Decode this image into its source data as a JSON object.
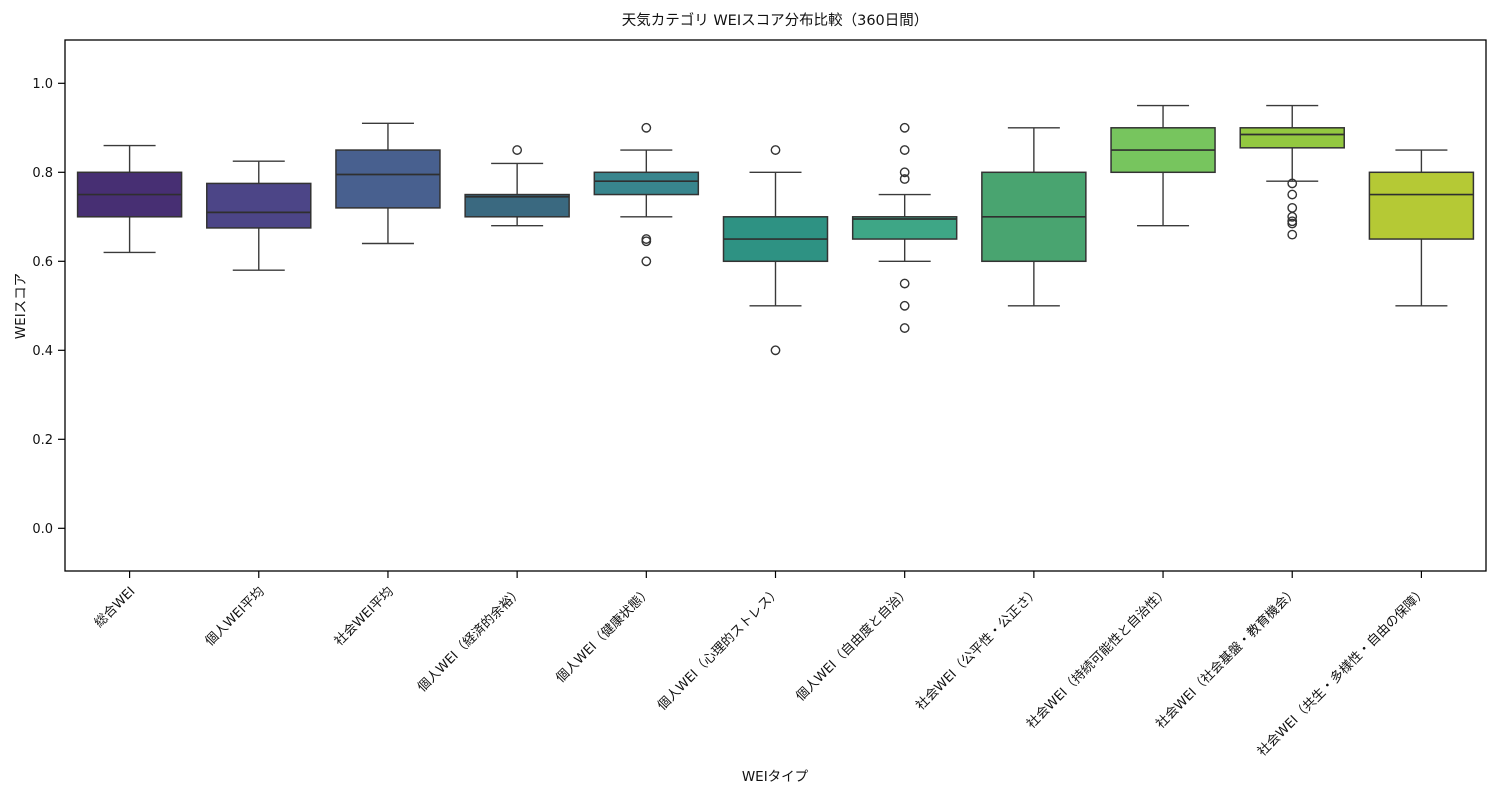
{
  "title": "天気カテゴリ WEIスコア分布比較（360日間）",
  "axes": {
    "x_label": "WEIタイプ",
    "y_label": "WEIスコア",
    "y_ticks": [
      "0.0",
      "0.2",
      "0.4",
      "0.6",
      "0.8",
      "1.0"
    ]
  },
  "colors": {
    "background": "#ffffff",
    "axis_line": "#000000",
    "box_edge": "#333333",
    "median_line": "#2f2f2f",
    "whisker": "#3a3a3a"
  },
  "chart_data": {
    "type": "boxplot",
    "title": "天気カテゴリ WEIスコア分布比較（360日間）",
    "xlabel": "WEIタイプ",
    "ylabel": "WEIスコア",
    "ylim": [
      -0.1,
      1.1
    ],
    "yticks": [
      0.0,
      0.2,
      0.4,
      0.6,
      0.8,
      1.0
    ],
    "grid": false,
    "legend": "none",
    "categories": [
      "総合WEI",
      "個人WEI平均",
      "社会WEI平均",
      "個人WEI（経済的余裕）",
      "個人WEI（健康状態）",
      "個人WEI（心理的ストレス）",
      "個人WEI（自由度と自治）",
      "社会WEI（公平性・公正さ）",
      "社会WEI（持続可能性と自治性）",
      "社会WEI（社会基盤・教育機会）",
      "社会WEI（共生・多様性・自由の保障）"
    ],
    "series": [
      {
        "label": "総合WEI",
        "whisker_low": 0.62,
        "q1": 0.7,
        "median": 0.75,
        "q3": 0.8,
        "whisker_high": 0.86,
        "outliers": [],
        "color": "#472f73"
      },
      {
        "label": "個人WEI平均",
        "whisker_low": 0.58,
        "q1": 0.675,
        "median": 0.71,
        "q3": 0.775,
        "whisker_high": 0.825,
        "outliers": [],
        "color": "#4c4587"
      },
      {
        "label": "社会WEI平均",
        "whisker_low": 0.64,
        "q1": 0.72,
        "median": 0.795,
        "q3": 0.85,
        "whisker_high": 0.91,
        "outliers": [],
        "color": "#48608f"
      },
      {
        "label": "個人WEI（経済的余裕）",
        "whisker_low": 0.68,
        "q1": 0.7,
        "median": 0.745,
        "q3": 0.75,
        "whisker_high": 0.82,
        "outliers": [
          0.85
        ],
        "color": "#3a6980"
      },
      {
        "label": "個人WEI（健康状態）",
        "whisker_low": 0.7,
        "q1": 0.75,
        "median": 0.78,
        "q3": 0.8,
        "whisker_high": 0.85,
        "outliers": [
          0.9,
          0.65,
          0.645,
          0.6
        ],
        "color": "#38858d"
      },
      {
        "label": "個人WEI（心理的ストレス）",
        "whisker_low": 0.5,
        "q1": 0.6,
        "median": 0.65,
        "q3": 0.7,
        "whisker_high": 0.8,
        "outliers": [
          0.85,
          0.4
        ],
        "color": "#2e9283"
      },
      {
        "label": "個人WEI（自由度と自治）",
        "whisker_low": 0.6,
        "q1": 0.65,
        "median": 0.695,
        "q3": 0.7,
        "whisker_high": 0.75,
        "outliers": [
          0.9,
          0.85,
          0.8,
          0.785,
          0.55,
          0.5,
          0.45
        ],
        "color": "#3ea686"
      },
      {
        "label": "社会WEI（公平性・公正さ）",
        "whisker_low": 0.5,
        "q1": 0.6,
        "median": 0.7,
        "q3": 0.8,
        "whisker_high": 0.9,
        "outliers": [],
        "color": "#49a470"
      },
      {
        "label": "社会WEI（持続可能性と自治性）",
        "whisker_low": 0.68,
        "q1": 0.8,
        "median": 0.85,
        "q3": 0.9,
        "whisker_high": 0.95,
        "outliers": [],
        "color": "#77c55e"
      },
      {
        "label": "社会WEI（社会基盤・教育機会）",
        "whisker_low": 0.78,
        "q1": 0.855,
        "median": 0.885,
        "q3": 0.9,
        "whisker_high": 0.95,
        "outliers": [
          0.775,
          0.75,
          0.72,
          0.7,
          0.69,
          0.685,
          0.66
        ],
        "color": "#93c840"
      },
      {
        "label": "社会WEI（共生・多様性・自由の保障）",
        "whisker_low": 0.5,
        "q1": 0.65,
        "median": 0.75,
        "q3": 0.8,
        "whisker_high": 0.85,
        "outliers": [],
        "color": "#b5c935"
      }
    ]
  }
}
